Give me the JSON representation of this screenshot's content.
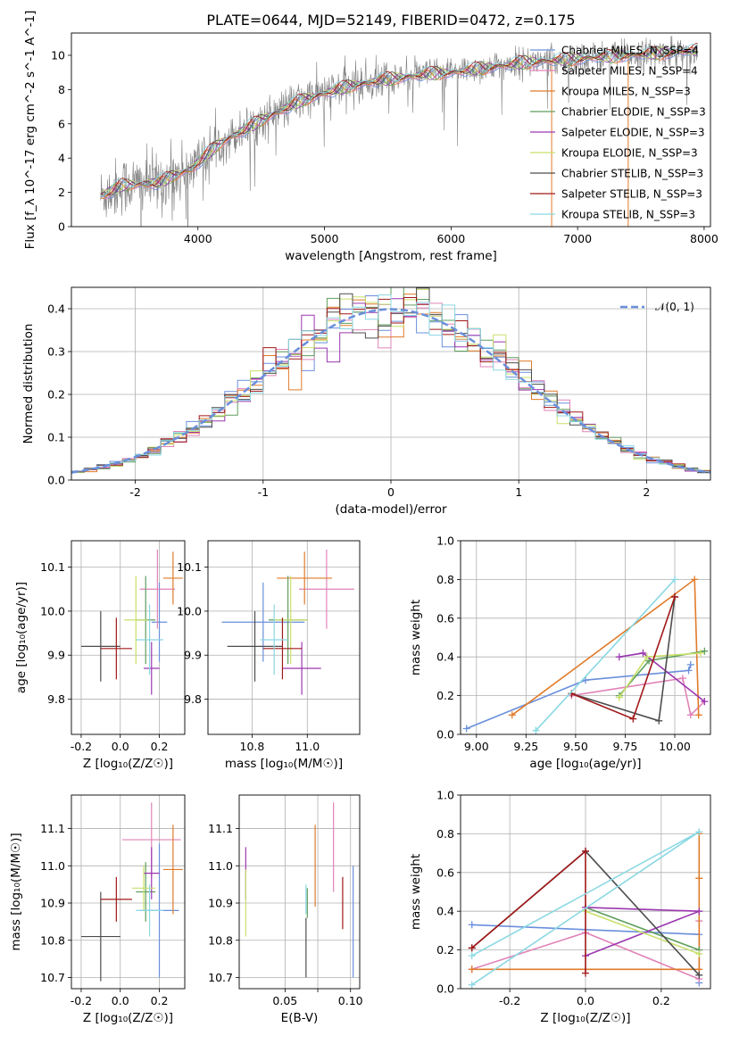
{
  "figure": {
    "title": "PLATE=0644, MJD=52149, FIBERID=0472, z=0.175"
  },
  "colors": {
    "Chabrier MILES": "#6a8fdb",
    "Salpeter MILES": "#e083b8",
    "Kroupa MILES": "#e07b2a",
    "Chabrier ELODIE": "#5e9e5e",
    "Salpeter ELODIE": "#9b37b0",
    "Kroupa ELODIE": "#c8e06a",
    "Chabrier STELIB": "#4d4d4d",
    "Salpeter STELIB": "#a01818",
    "Kroupa STELIB": "#8ad8e3",
    "data": "#808080",
    "normal": "#6a8fdb"
  },
  "chart_data": [
    {
      "id": "spectrum",
      "type": "line",
      "xlabel": "wavelength [Angstrom, rest frame]",
      "ylabel": "Flux [f_λ 10^-17 erg cm^-2 s^-1 A^-1]",
      "xlim": [
        3000,
        8050
      ],
      "ylim": [
        0,
        11.3
      ],
      "xticks": [
        4000,
        5000,
        6000,
        7000,
        8000
      ],
      "yticks": [
        0,
        2,
        4,
        6,
        8,
        10
      ],
      "legend_position": "right",
      "legend": [
        {
          "label": "Chabrier MILES, N_SSP=4",
          "color": "#6a8fdb"
        },
        {
          "label": "Salpeter MILES, N_SSP=4",
          "color": "#e083b8"
        },
        {
          "label": "Kroupa MILES, N_SSP=3",
          "color": "#e07b2a"
        },
        {
          "label": "Chabrier ELODIE, N_SSP=3",
          "color": "#5e9e5e"
        },
        {
          "label": "Salpeter ELODIE, N_SSP=3",
          "color": "#9b37b0"
        },
        {
          "label": "Kroupa ELODIE, N_SSP=3",
          "color": "#c8e06a"
        },
        {
          "label": "Chabrier STELIB, N_SSP=3",
          "color": "#4d4d4d"
        },
        {
          "label": "Salpeter STELIB, N_SSP=3",
          "color": "#a01818"
        },
        {
          "label": "Kroupa STELIB, N_SSP=3",
          "color": "#8ad8e3"
        }
      ],
      "continuum": {
        "x": [
          3230,
          3400,
          3550,
          3700,
          3850,
          3950,
          4050,
          4200,
          4400,
          4600,
          4800,
          5000,
          5200,
          5400,
          5600,
          5800,
          6000,
          6200,
          6400,
          6600,
          6800,
          7000,
          7200,
          7400,
          7600,
          7800,
          7950
        ],
        "y": [
          1.8,
          2.4,
          2.5,
          2.6,
          3.1,
          3.4,
          4.1,
          5.0,
          5.8,
          6.6,
          7.3,
          7.8,
          8.2,
          8.5,
          8.7,
          8.9,
          9.0,
          9.2,
          9.4,
          9.6,
          9.7,
          9.8,
          9.9,
          10.0,
          10.1,
          10.2,
          10.3
        ]
      },
      "vertical_drops": [
        3550,
        3920,
        6795,
        7400
      ]
    },
    {
      "id": "residuals",
      "type": "line",
      "xlabel": "(data-model)/error",
      "ylabel": "Normed distribution",
      "xlim": [
        -2.5,
        2.5
      ],
      "ylim": [
        0,
        0.45
      ],
      "xticks": [
        -2,
        -1,
        0,
        1,
        2
      ],
      "yticks": [
        0.0,
        0.1,
        0.2,
        0.3,
        0.4
      ],
      "grid": true,
      "legend_position": "top-right",
      "reference_curve": {
        "label": "𝒩(0, 1)",
        "mean": 0,
        "sigma": 1,
        "style": "dashed"
      }
    },
    {
      "id": "age_vs_Z",
      "type": "scatter",
      "xlabel": "Z [log₁₀(Z/Z☉)]",
      "ylabel": "age  [log₁₀(age/yr)]",
      "xlim": [
        -0.25,
        0.33
      ],
      "ylim": [
        9.72,
        10.16
      ],
      "xticks": [
        -0.2,
        0.0,
        0.2
      ],
      "yticks": [
        9.8,
        9.9,
        10.0,
        10.1
      ],
      "grid": true,
      "points": [
        {
          "model": "Chabrier MILES",
          "x": 0.2,
          "xerr": 0.04,
          "y": 9.975,
          "yerr": 0.09
        },
        {
          "model": "Salpeter MILES",
          "x": 0.19,
          "xerr": 0.09,
          "y": 10.05,
          "yerr": 0.09
        },
        {
          "model": "Kroupa MILES",
          "x": 0.27,
          "xerr": 0.05,
          "y": 10.075,
          "yerr": 0.06
        },
        {
          "model": "Chabrier ELODIE",
          "x": 0.13,
          "xerr": 0.05,
          "y": 9.98,
          "yerr": 0.1
        },
        {
          "model": "Salpeter ELODIE",
          "x": 0.16,
          "xerr": 0.04,
          "y": 9.87,
          "yerr": 0.06
        },
        {
          "model": "Kroupa ELODIE",
          "x": 0.08,
          "xerr": 0.06,
          "y": 9.98,
          "yerr": 0.1
        },
        {
          "model": "Chabrier STELIB",
          "x": -0.1,
          "xerr": 0.1,
          "y": 9.92,
          "yerr": 0.08
        },
        {
          "model": "Salpeter STELIB",
          "x": -0.02,
          "xerr": 0.08,
          "y": 9.915,
          "yerr": 0.07
        },
        {
          "model": "Kroupa STELIB",
          "x": 0.15,
          "xerr": 0.07,
          "y": 9.935,
          "yerr": 0.08
        }
      ]
    },
    {
      "id": "age_vs_mass",
      "type": "scatter",
      "xlabel": "mass [log₁₀(M/M☉)]",
      "ylabel": "",
      "xlim": [
        10.64,
        11.19
      ],
      "ylim": [
        9.72,
        10.16
      ],
      "xticks": [
        10.8,
        11.0
      ],
      "yticks": [
        9.8,
        9.9,
        10.0,
        10.1
      ],
      "grid": true,
      "points": [
        {
          "model": "Chabrier MILES",
          "x": 10.84,
          "xerr": 0.15,
          "y": 9.975,
          "yerr": 0.09
        },
        {
          "model": "Salpeter MILES",
          "x": 11.07,
          "xerr": 0.1,
          "y": 10.05,
          "yerr": 0.09
        },
        {
          "model": "Kroupa MILES",
          "x": 10.99,
          "xerr": 0.1,
          "y": 10.075,
          "yerr": 0.06
        },
        {
          "model": "Chabrier ELODIE",
          "x": 10.93,
          "xerr": 0.07,
          "y": 9.98,
          "yerr": 0.1
        },
        {
          "model": "Salpeter ELODIE",
          "x": 10.98,
          "xerr": 0.07,
          "y": 9.87,
          "yerr": 0.06
        },
        {
          "model": "Kroupa ELODIE",
          "x": 10.94,
          "xerr": 0.06,
          "y": 9.98,
          "yerr": 0.1
        },
        {
          "model": "Chabrier STELIB",
          "x": 10.81,
          "xerr": 0.1,
          "y": 9.92,
          "yerr": 0.08
        },
        {
          "model": "Salpeter STELIB",
          "x": 10.91,
          "xerr": 0.07,
          "y": 9.915,
          "yerr": 0.07
        },
        {
          "model": "Kroupa STELIB",
          "x": 10.88,
          "xerr": 0.05,
          "y": 9.935,
          "yerr": 0.08
        }
      ]
    },
    {
      "id": "weight_vs_age",
      "type": "line",
      "xlabel": "age  [log₁₀(age/yr)]",
      "ylabel": "mass weight",
      "xlim": [
        8.92,
        10.18
      ],
      "ylim": [
        0,
        1
      ],
      "xticks": [
        9.0,
        9.25,
        9.5,
        9.75,
        10.0
      ],
      "yticks": [
        0.0,
        0.2,
        0.4,
        0.6,
        0.8,
        1.0
      ],
      "grid": true,
      "series": [
        {
          "model": "Chabrier MILES",
          "x": [
            8.95,
            9.55,
            10.07,
            10.08
          ],
          "y": [
            0.03,
            0.28,
            0.33,
            0.36
          ]
        },
        {
          "model": "Salpeter MILES",
          "x": [
            9.48,
            10.04,
            10.08,
            10.15
          ],
          "y": [
            0.2,
            0.29,
            0.1,
            0.17
          ]
        },
        {
          "model": "Kroupa MILES",
          "x": [
            9.18,
            10.1,
            10.12
          ],
          "y": [
            0.1,
            0.8,
            0.1
          ]
        },
        {
          "model": "Chabrier ELODIE",
          "x": [
            9.72,
            9.87,
            10.15
          ],
          "y": [
            0.2,
            0.38,
            0.43
          ]
        },
        {
          "model": "Salpeter ELODIE",
          "x": [
            9.72,
            9.84,
            10.15
          ],
          "y": [
            0.4,
            0.42,
            0.17
          ]
        },
        {
          "model": "Kroupa ELODIE",
          "x": [
            9.72,
            9.86,
            10.13
          ],
          "y": [
            0.19,
            0.4,
            0.42
          ]
        },
        {
          "model": "Chabrier STELIB",
          "x": [
            9.48,
            9.92,
            10.0
          ],
          "y": [
            0.21,
            0.07,
            0.71
          ]
        },
        {
          "model": "Salpeter STELIB",
          "x": [
            9.48,
            9.79,
            10.0
          ],
          "y": [
            0.21,
            0.08,
            0.71
          ]
        },
        {
          "model": "Kroupa STELIB",
          "x": [
            9.3,
            10.0,
            9.3
          ],
          "y": [
            0.02,
            0.8,
            0.02
          ]
        }
      ]
    },
    {
      "id": "mass_vs_Z",
      "type": "scatter",
      "xlabel": "Z [log₁₀(Z/Z☉)]",
      "ylabel": "mass [log₁₀(M/M☉)]",
      "xlim": [
        -0.25,
        0.33
      ],
      "ylim": [
        10.67,
        11.19
      ],
      "xticks": [
        -0.2,
        0.0,
        0.2
      ],
      "yticks": [
        10.7,
        10.8,
        10.9,
        11.0,
        11.1
      ],
      "grid": true,
      "points": [
        {
          "model": "Chabrier MILES",
          "x": 0.2,
          "xerr": 0.1,
          "y": 10.88,
          "yerr": 0.18
        },
        {
          "model": "Salpeter MILES",
          "x": 0.16,
          "xerr": 0.15,
          "y": 11.07,
          "yerr": 0.1
        },
        {
          "model": "Kroupa MILES",
          "x": 0.27,
          "xerr": 0.05,
          "y": 10.99,
          "yerr": 0.12
        },
        {
          "model": "Chabrier ELODIE",
          "x": 0.13,
          "xerr": 0.05,
          "y": 10.93,
          "yerr": 0.08
        },
        {
          "model": "Salpeter ELODIE",
          "x": 0.16,
          "xerr": 0.04,
          "y": 10.98,
          "yerr": 0.07
        },
        {
          "model": "Kroupa ELODIE",
          "x": 0.12,
          "xerr": 0.06,
          "y": 10.94,
          "yerr": 0.06
        },
        {
          "model": "Chabrier STELIB",
          "x": -0.1,
          "xerr": 0.1,
          "y": 10.81,
          "yerr": 0.12
        },
        {
          "model": "Salpeter STELIB",
          "x": -0.02,
          "xerr": 0.08,
          "y": 10.91,
          "yerr": 0.06
        },
        {
          "model": "Kroupa STELIB",
          "x": 0.15,
          "xerr": 0.07,
          "y": 10.88,
          "yerr": 0.07
        }
      ]
    },
    {
      "id": "mass_vs_EBV",
      "type": "scatter",
      "xlabel": "E(B-V)",
      "ylabel": "",
      "xlim": [
        0.015,
        0.107
      ],
      "ylim": [
        10.67,
        11.19
      ],
      "xticks": [
        0.05,
        0.075,
        0.1
      ],
      "xticklabels": [
        "0.05",
        "",
        "0.10"
      ],
      "yticks": [
        10.7,
        10.8,
        10.9,
        11.0,
        11.1
      ],
      "grid": true,
      "points": [
        {
          "model": "Chabrier MILES",
          "x": 0.102,
          "y": 10.85,
          "yerr": 0.15
        },
        {
          "model": "Salpeter MILES",
          "x": 0.087,
          "y": 11.05,
          "yerr": 0.12
        },
        {
          "model": "Kroupa MILES",
          "x": 0.073,
          "y": 11.0,
          "yerr": 0.11
        },
        {
          "model": "Chabrier ELODIE",
          "x": 0.067,
          "y": 10.9,
          "yerr": 0.04
        },
        {
          "model": "Salpeter ELODIE",
          "x": 0.02,
          "y": 10.98,
          "yerr": 0.07
        },
        {
          "model": "Kroupa ELODIE",
          "x": 0.02,
          "y": 10.9,
          "yerr": 0.09
        },
        {
          "model": "Chabrier STELIB",
          "x": 0.066,
          "y": 10.78,
          "yerr": 0.08
        },
        {
          "model": "Salpeter STELIB",
          "x": 0.094,
          "y": 10.9,
          "yerr": 0.07
        },
        {
          "model": "Kroupa STELIB",
          "x": 0.066,
          "y": 10.91,
          "yerr": 0.04
        }
      ]
    },
    {
      "id": "weight_vs_Z",
      "type": "line",
      "xlabel": "Z [log₁₀(Z/Z☉)]",
      "ylabel": "mass weight",
      "xlim": [
        -0.33,
        0.33
      ],
      "ylim": [
        0,
        1
      ],
      "xticks": [
        -0.2,
        0.0,
        0.2
      ],
      "yticks": [
        0.0,
        0.2,
        0.4,
        0.6,
        0.8,
        1.0
      ],
      "grid": true,
      "series": [
        {
          "model": "Chabrier MILES",
          "x": [
            -0.3,
            0.3,
            0.3
          ],
          "y": [
            0.33,
            0.28,
            0.03
          ]
        },
        {
          "model": "Salpeter MILES",
          "x": [
            -0.3,
            0.0,
            0.3,
            0.3
          ],
          "y": [
            0.1,
            0.29,
            0.05,
            0.35
          ]
        },
        {
          "model": "Kroupa MILES",
          "x": [
            -0.3,
            0.3,
            0.3,
            0.3
          ],
          "y": [
            0.1,
            0.1,
            0.8,
            0.57
          ]
        },
        {
          "model": "Chabrier ELODIE",
          "x": [
            0.0,
            0.3
          ],
          "y": [
            0.42,
            0.2
          ]
        },
        {
          "model": "Salpeter ELODIE",
          "x": [
            0.0,
            0.3,
            0.0
          ],
          "y": [
            0.17,
            0.4,
            0.42
          ]
        },
        {
          "model": "Kroupa ELODIE",
          "x": [
            0.0,
            0.3
          ],
          "y": [
            0.4,
            0.18
          ]
        },
        {
          "model": "Chabrier STELIB",
          "x": [
            -0.3,
            0.0,
            0.3
          ],
          "y": [
            0.21,
            0.71,
            0.07
          ]
        },
        {
          "model": "Salpeter STELIB",
          "x": [
            -0.3,
            0.0,
            0.0
          ],
          "y": [
            0.21,
            0.71,
            0.08
          ]
        },
        {
          "model": "Kroupa STELIB",
          "x": [
            -0.3,
            0.3,
            -0.3
          ],
          "y": [
            0.02,
            0.81,
            0.17
          ]
        }
      ]
    }
  ]
}
